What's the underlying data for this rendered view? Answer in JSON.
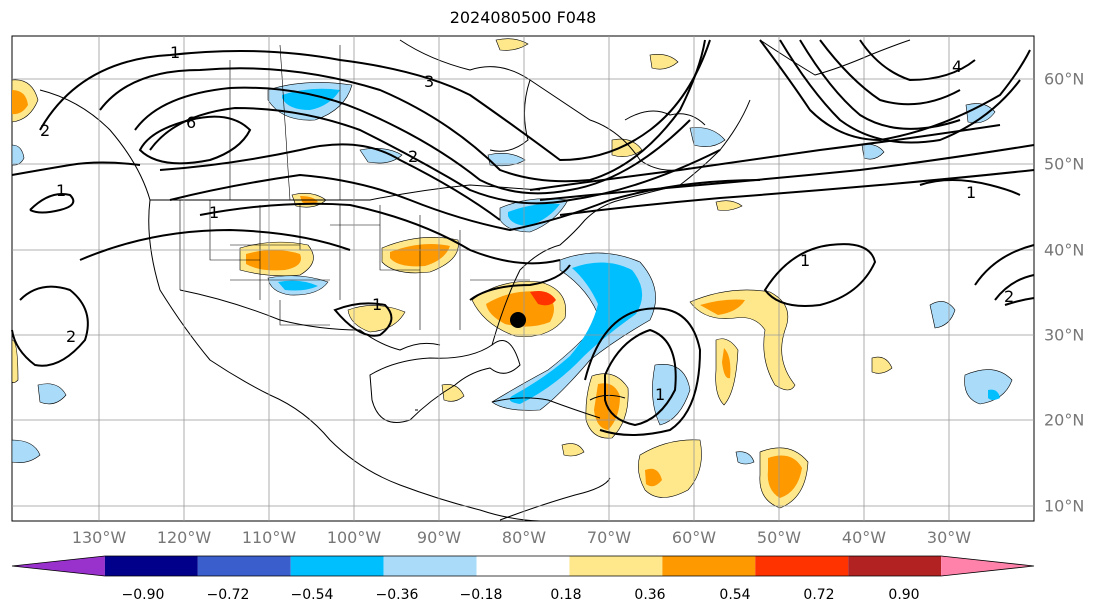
{
  "title": "2024080500 F048",
  "map": {
    "lon_labels": [
      "130°W",
      "120°W",
      "110°W",
      "100°W",
      "90°W",
      "80°W",
      "70°W",
      "60°W",
      "50°W",
      "40°W",
      "30°W"
    ],
    "lat_labels": [
      "60°N",
      "50°N",
      "40°N",
      "30°N",
      "20°N",
      "10°N"
    ],
    "contour_labels": [
      "1",
      "6",
      "2",
      "3",
      "1",
      "4",
      "1",
      "2",
      "1",
      "1",
      "2",
      "2",
      "1",
      "1"
    ],
    "storm_marker": "black-dot"
  },
  "colorbar": {
    "ticks": [
      "−0.90",
      "−0.72",
      "−0.54",
      "−0.36",
      "−0.18",
      "0.18",
      "0.36",
      "0.54",
      "0.72",
      "0.90"
    ],
    "colors": [
      "#9932cc",
      "#00008b",
      "#3a5fcd",
      "#00bfff",
      "#aadcfa",
      "#ffffff",
      "#fee88b",
      "#ff9900",
      "#ff3300",
      "#b22222",
      "#ff82ab"
    ],
    "extend": "both"
  }
}
